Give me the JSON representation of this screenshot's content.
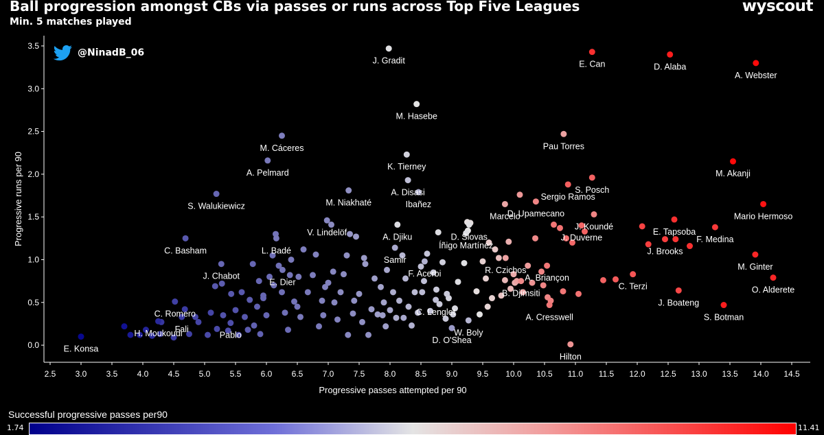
{
  "header": {
    "title": "Ball progression amongst CBs via passes or runs across Top Five Leagues",
    "subtitle": "Min. 5 matches played",
    "brand": "wyscout",
    "handle": "@NinadB_06"
  },
  "colorbar": {
    "label": "Successful progressive passes per90",
    "min_label": "1.74",
    "max_label": "11.41",
    "min": 1.74,
    "max": 11.41,
    "colors": [
      "#00008b",
      "#e4e4e4",
      "#ff0000"
    ]
  },
  "chart_data": {
    "type": "scatter",
    "title": "Ball progression amongst CBs via passes or runs across Top Five Leagues",
    "subtitle": "Min. 5 matches played",
    "xlabel": "Progressive passes attempted per 90",
    "ylabel": "Progressive runs per 90",
    "xlim": [
      2.4,
      14.8
    ],
    "ylim": [
      -0.2,
      3.62
    ],
    "grid": false,
    "xticks": [
      "2.5",
      "3.0",
      "3.5",
      "4.0",
      "4.5",
      "5.0",
      "5.5",
      "6.0",
      "6.5",
      "7.0",
      "7.5",
      "8.0",
      "8.5",
      "9.0",
      "9.5",
      "10.0",
      "10.5",
      "11.0",
      "11.5",
      "12.0",
      "12.5",
      "13.0",
      "13.5",
      "14.0",
      "14.5"
    ],
    "yticks": [
      "0.0",
      "0.5",
      "1.0",
      "1.5",
      "2.0",
      "2.5",
      "3.0",
      "3.5"
    ],
    "color_metric": "Successful progressive passes per90",
    "labeled_points": [
      {
        "name": "J. Gradit",
        "x": 7.98,
        "y": 3.47,
        "c": 6.5
      },
      {
        "name": "E. Can",
        "x": 11.27,
        "y": 3.43,
        "c": 10.4
      },
      {
        "name": "D. Alaba",
        "x": 12.53,
        "y": 3.4,
        "c": 10.8
      },
      {
        "name": "A. Webster",
        "x": 13.92,
        "y": 3.3,
        "c": 11.2
      },
      {
        "name": "M. Hasebe",
        "x": 8.43,
        "y": 2.82,
        "c": 6.6
      },
      {
        "name": "Pau Torres",
        "x": 10.81,
        "y": 2.47,
        "c": 8.0
      },
      {
        "name": "M. Cáceres",
        "x": 6.25,
        "y": 2.45,
        "c": 4.4
      },
      {
        "name": "K. Tierney",
        "x": 8.27,
        "y": 2.23,
        "c": 6.2
      },
      {
        "name": "A. Pelmard",
        "x": 6.02,
        "y": 2.16,
        "c": 4.3
      },
      {
        "name": "M. Akanji",
        "x": 13.55,
        "y": 2.15,
        "c": 11.2
      },
      {
        "name": "Sergio Ramos",
        "x": 10.88,
        "y": 1.88,
        "c": 9.4
      },
      {
        "name": "S. Posch",
        "x": 11.27,
        "y": 1.96,
        "c": 9.3
      },
      {
        "name": "A. Disasi",
        "x": 8.29,
        "y": 1.93,
        "c": 5.8
      },
      {
        "name": "Ibañez",
        "x": 8.46,
        "y": 1.79,
        "c": 5.4
      },
      {
        "name": "S. Walukiewicz",
        "x": 5.19,
        "y": 1.77,
        "c": 3.9
      },
      {
        "name": "M. Niakhaté",
        "x": 7.33,
        "y": 1.81,
        "c": 4.8
      },
      {
        "name": "D. Upamecano",
        "x": 10.36,
        "y": 1.68,
        "c": 8.6
      },
      {
        "name": "Mario Hermoso",
        "x": 14.04,
        "y": 1.65,
        "c": 11.0
      },
      {
        "name": "Marcelo",
        "x": 9.86,
        "y": 1.65,
        "c": 7.9
      },
      {
        "name": "E. Tapsoba",
        "x": 12.6,
        "y": 1.47,
        "c": 10.4
      },
      {
        "name": "J. Koundé",
        "x": 11.3,
        "y": 1.53,
        "c": 8.6
      },
      {
        "name": "A. Djiku",
        "x": 8.12,
        "y": 1.41,
        "c": 6.4
      },
      {
        "name": "J. Duverne",
        "x": 11.1,
        "y": 1.4,
        "c": 9.2
      },
      {
        "name": "D. Siovas",
        "x": 9.28,
        "y": 1.41,
        "c": 6.5
      },
      {
        "name": "V. Lindelöf",
        "x": 6.98,
        "y": 1.46,
        "c": 4.6
      },
      {
        "name": "Íñigo Martínez",
        "x": 9.23,
        "y": 1.31,
        "c": 6.4
      },
      {
        "name": "M. Ginter",
        "x": 13.91,
        "y": 1.06,
        "c": 10.6
      },
      {
        "name": "L. Badé",
        "x": 6.16,
        "y": 1.25,
        "c": 4.3
      },
      {
        "name": "C. Basham",
        "x": 4.69,
        "y": 1.25,
        "c": 3.6
      },
      {
        "name": "F. Medina",
        "x": 13.26,
        "y": 1.38,
        "c": 10.2
      },
      {
        "name": "R. Czichos",
        "x": 9.87,
        "y": 1.02,
        "c": 8.0
      },
      {
        "name": "J. Brooks",
        "x": 12.45,
        "y": 1.24,
        "c": 10.1
      },
      {
        "name": "A. Briançon",
        "x": 10.54,
        "y": 0.93,
        "c": 8.9
      },
      {
        "name": "Samir",
        "x": 8.08,
        "y": 1.14,
        "c": 5.3
      },
      {
        "name": "E. Dier",
        "x": 6.26,
        "y": 0.88,
        "c": 4.2
      },
      {
        "name": "F. Acerbi",
        "x": 8.56,
        "y": 0.98,
        "c": 5.5
      },
      {
        "name": "C. Terzi",
        "x": 11.93,
        "y": 0.83,
        "c": 9.6
      },
      {
        "name": "J. Chabot",
        "x": 5.27,
        "y": 0.95,
        "c": 3.9
      },
      {
        "name": "O. Alderete",
        "x": 14.2,
        "y": 0.79,
        "c": 10.6
      },
      {
        "name": "B. Djimsiti",
        "x": 10.12,
        "y": 0.75,
        "c": 8.5
      },
      {
        "name": "J. Boateng",
        "x": 12.67,
        "y": 0.64,
        "c": 9.9
      },
      {
        "name": "C. Lenglet",
        "x": 8.74,
        "y": 0.53,
        "c": 5.8
      },
      {
        "name": "C. Romero",
        "x": 4.52,
        "y": 0.51,
        "c": 3.1
      },
      {
        "name": "A. Cresswell",
        "x": 10.58,
        "y": 0.47,
        "c": 8.9
      },
      {
        "name": "H. Moukoudi",
        "x": 4.25,
        "y": 0.28,
        "c": 2.6
      },
      {
        "name": "Fali",
        "x": 4.63,
        "y": 0.33,
        "c": 3.0
      },
      {
        "name": "Pablo",
        "x": 5.42,
        "y": 0.26,
        "c": 3.4
      },
      {
        "name": "S. Botman",
        "x": 13.4,
        "y": 0.47,
        "c": 10.8
      },
      {
        "name": "W. Boly",
        "x": 9.27,
        "y": 0.29,
        "c": 5.6
      },
      {
        "name": "E. Konsa",
        "x": 3.0,
        "y": 0.1,
        "c": 1.9
      },
      {
        "name": "D. O'Shea",
        "x": 9.0,
        "y": 0.2,
        "c": 5.0
      },
      {
        "name": "Hilton",
        "x": 10.92,
        "y": 0.01,
        "c": 8.3
      }
    ],
    "other_points": [
      [
        3.7,
        0.22,
        2.1
      ],
      [
        3.8,
        0.12,
        2.3
      ],
      [
        3.95,
        0.12,
        2.4
      ],
      [
        4.05,
        0.18,
        2.5
      ],
      [
        4.15,
        0.11,
        2.6
      ],
      [
        4.28,
        0.13,
        2.8
      ],
      [
        4.3,
        0.27,
        2.9
      ],
      [
        4.5,
        0.09,
        3.0
      ],
      [
        4.68,
        0.42,
        3.0
      ],
      [
        4.75,
        0.13,
        3.1
      ],
      [
        4.9,
        0.27,
        3.2
      ],
      [
        5.05,
        0.12,
        3.3
      ],
      [
        5.1,
        0.38,
        3.2
      ],
      [
        5.2,
        0.19,
        3.3
      ],
      [
        5.17,
        0.69,
        3.6
      ],
      [
        5.3,
        0.35,
        3.5
      ],
      [
        5.38,
        0.17,
        3.4
      ],
      [
        5.43,
        0.6,
        3.6
      ],
      [
        5.5,
        0.41,
        3.5
      ],
      [
        5.55,
        0.12,
        3.4
      ],
      [
        5.6,
        0.62,
        3.6
      ],
      [
        5.65,
        0.33,
        3.6
      ],
      [
        5.7,
        0.18,
        3.7
      ],
      [
        5.73,
        0.53,
        3.7
      ],
      [
        5.8,
        0.23,
        3.8
      ],
      [
        5.85,
        0.45,
        3.8
      ],
      [
        5.88,
        0.75,
        3.9
      ],
      [
        5.9,
        0.13,
        3.8
      ],
      [
        5.95,
        0.58,
        3.9
      ],
      [
        6.0,
        0.35,
        3.9
      ],
      [
        6.05,
        0.8,
        4.0
      ],
      [
        6.1,
        1.05,
        4.1
      ],
      [
        6.15,
        1.3,
        4.2
      ],
      [
        6.2,
        0.93,
        4.1
      ],
      [
        6.25,
        0.62,
        4.1
      ],
      [
        6.3,
        0.38,
        4.1
      ],
      [
        6.35,
        0.18,
        4.0
      ],
      [
        6.38,
        0.82,
        4.2
      ],
      [
        6.4,
        1.0,
        4.3
      ],
      [
        6.45,
        0.51,
        4.2
      ],
      [
        6.55,
        0.33,
        4.3
      ],
      [
        6.6,
        1.12,
        4.4
      ],
      [
        6.67,
        0.62,
        4.3
      ],
      [
        6.75,
        0.82,
        4.4
      ],
      [
        6.8,
        1.06,
        4.5
      ],
      [
        6.85,
        0.22,
        4.3
      ],
      [
        6.9,
        0.52,
        4.5
      ],
      [
        7.0,
        0.73,
        4.5
      ],
      [
        7.05,
        1.41,
        4.7
      ],
      [
        7.08,
        0.86,
        4.6
      ],
      [
        7.1,
        0.5,
        4.6
      ],
      [
        7.15,
        0.3,
        4.5
      ],
      [
        7.2,
        0.62,
        4.7
      ],
      [
        7.25,
        0.83,
        4.7
      ],
      [
        7.3,
        1.05,
        4.8
      ],
      [
        7.35,
        1.3,
        4.9
      ],
      [
        7.4,
        0.37,
        4.7
      ],
      [
        7.45,
        1.27,
        5.0
      ],
      [
        7.5,
        0.6,
        4.9
      ],
      [
        7.55,
        0.27,
        4.8
      ],
      [
        7.6,
        0.95,
        5.0
      ],
      [
        7.65,
        0.12,
        4.8
      ],
      [
        7.7,
        0.42,
        5.0
      ],
      [
        7.75,
        0.78,
        5.1
      ],
      [
        7.8,
        0.36,
        5.1
      ],
      [
        7.85,
        0.68,
        5.2
      ],
      [
        7.9,
        0.5,
        5.2
      ],
      [
        7.93,
        0.22,
        5.1
      ],
      [
        7.95,
        0.88,
        5.3
      ],
      [
        8.0,
        0.41,
        5.3
      ],
      [
        8.05,
        0.62,
        5.4
      ],
      [
        8.1,
        0.32,
        5.4
      ],
      [
        8.15,
        0.52,
        5.5
      ],
      [
        8.2,
        1.05,
        5.6
      ],
      [
        8.25,
        0.78,
        5.6
      ],
      [
        8.3,
        0.45,
        5.6
      ],
      [
        8.35,
        0.23,
        5.5
      ],
      [
        8.4,
        0.62,
        5.7
      ],
      [
        8.45,
        0.38,
        5.7
      ],
      [
        8.5,
        0.92,
        5.8
      ],
      [
        8.55,
        0.75,
        5.8
      ],
      [
        8.6,
        1.07,
        5.9
      ],
      [
        8.65,
        0.4,
        5.9
      ],
      [
        8.7,
        0.85,
        6.0
      ],
      [
        8.75,
        0.65,
        6.0
      ],
      [
        8.8,
        0.48,
        6.0
      ],
      [
        8.85,
        0.97,
        6.1
      ],
      [
        8.9,
        0.31,
        6.0
      ],
      [
        8.95,
        0.55,
        6.2
      ],
      [
        9.05,
        0.43,
        6.3
      ],
      [
        9.1,
        0.74,
        6.4
      ],
      [
        9.2,
        0.96,
        6.5
      ],
      [
        9.25,
        1.44,
        6.7
      ],
      [
        9.3,
        1.43,
        6.7
      ],
      [
        9.4,
        0.63,
        6.7
      ],
      [
        9.45,
        0.36,
        6.6
      ],
      [
        9.5,
        0.98,
        7.0
      ],
      [
        9.55,
        0.78,
        7.0
      ],
      [
        9.6,
        1.2,
        7.1
      ],
      [
        9.65,
        0.55,
        7.0
      ],
      [
        9.7,
        1.12,
        7.2
      ],
      [
        9.76,
        1.02,
        7.4
      ],
      [
        9.8,
        0.58,
        7.3
      ],
      [
        9.86,
        0.76,
        7.5
      ],
      [
        9.92,
        1.21,
        7.7
      ],
      [
        9.95,
        0.66,
        7.5
      ],
      [
        10.0,
        0.83,
        7.8
      ],
      [
        10.02,
        0.73,
        7.7
      ],
      [
        10.1,
        1.76,
        8.2
      ],
      [
        10.15,
        0.62,
        7.9
      ],
      [
        10.23,
        0.93,
        8.1
      ],
      [
        10.3,
        0.73,
        8.3
      ],
      [
        10.35,
        1.25,
        8.5
      ],
      [
        10.45,
        0.86,
        8.6
      ],
      [
        10.55,
        0.56,
        8.6
      ],
      [
        10.6,
        0.52,
        8.7
      ],
      [
        10.65,
        1.41,
        8.9
      ],
      [
        10.75,
        1.37,
        9.0
      ],
      [
        10.8,
        0.63,
        8.9
      ],
      [
        10.85,
        1.25,
        9.1
      ],
      [
        10.95,
        1.2,
        9.2
      ],
      [
        11.05,
        0.6,
        9.0
      ],
      [
        11.15,
        1.33,
        9.3
      ],
      [
        11.45,
        0.76,
        9.3
      ],
      [
        11.65,
        0.77,
        9.5
      ],
      [
        12.08,
        1.39,
        10.0
      ],
      [
        12.18,
        1.18,
        10.1
      ],
      [
        12.62,
        1.24,
        10.3
      ],
      [
        12.85,
        1.16,
        10.4
      ],
      [
        9.26,
        1.34,
        6.6
      ],
      [
        8.78,
        1.32,
        6.4
      ],
      [
        5.78,
        0.95,
        3.9
      ],
      [
        6.52,
        0.8,
        4.3
      ],
      [
        7.58,
        1.02,
        5.0
      ],
      [
        8.92,
        0.6,
        6.0
      ],
      [
        5.28,
        0.72,
        3.7
      ],
      [
        6.12,
        0.7,
        4.1
      ],
      [
        6.92,
        0.35,
        4.4
      ],
      [
        7.42,
        0.52,
        4.8
      ],
      [
        8.22,
        0.32,
        5.3
      ],
      [
        9.58,
        0.45,
        6.9
      ],
      [
        4.85,
        0.33,
        3.2
      ],
      [
        5.95,
        0.55,
        3.9
      ],
      [
        6.95,
        0.68,
        4.5
      ],
      [
        7.32,
        0.12,
        4.6
      ],
      [
        8.52,
        0.62,
        5.7
      ],
      [
        9.02,
        0.36,
        6.1
      ],
      [
        10.48,
        0.7,
        8.6
      ],
      [
        10.05,
        0.75,
        8.0
      ],
      [
        7.88,
        0.35,
        5.1
      ],
      [
        6.5,
        0.45,
        4.2
      ]
    ]
  }
}
